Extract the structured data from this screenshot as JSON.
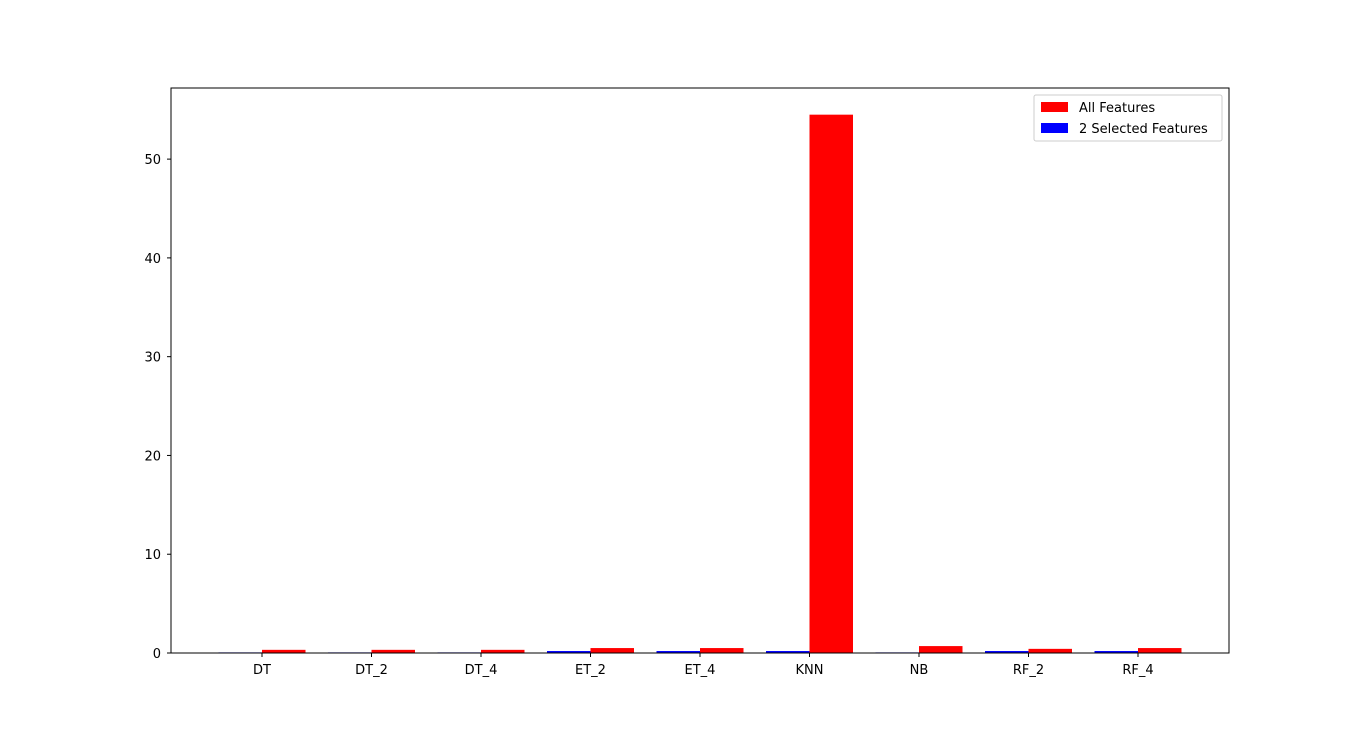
{
  "chart_data": {
    "type": "bar",
    "title": "",
    "xlabel": "",
    "ylabel": "",
    "categories": [
      "DT",
      "DT_2",
      "DT_4",
      "ET_2",
      "ET_4",
      "KNN",
      "NB",
      "RF_2",
      "RF_4"
    ],
    "series": [
      {
        "name": "2 Selected Features",
        "color": "#0000ff",
        "values": [
          0.02,
          0.02,
          0.02,
          0.2,
          0.2,
          0.2,
          0.02,
          0.2,
          0.2
        ]
      },
      {
        "name": "All Features",
        "color": "#ff0000",
        "values": [
          0.32,
          0.32,
          0.32,
          0.5,
          0.5,
          54.5,
          0.7,
          0.42,
          0.5
        ]
      }
    ],
    "ylim": [
      0,
      57.2
    ],
    "yticks": [
      "0",
      "10",
      "20",
      "30",
      "40",
      "50"
    ],
    "grid": false,
    "legend": {
      "placement": "top-right",
      "entries": [
        {
          "label": "All Features",
          "color": "#ff0000"
        },
        {
          "label": "2 Selected Features",
          "color": "#0000ff"
        }
      ]
    }
  }
}
